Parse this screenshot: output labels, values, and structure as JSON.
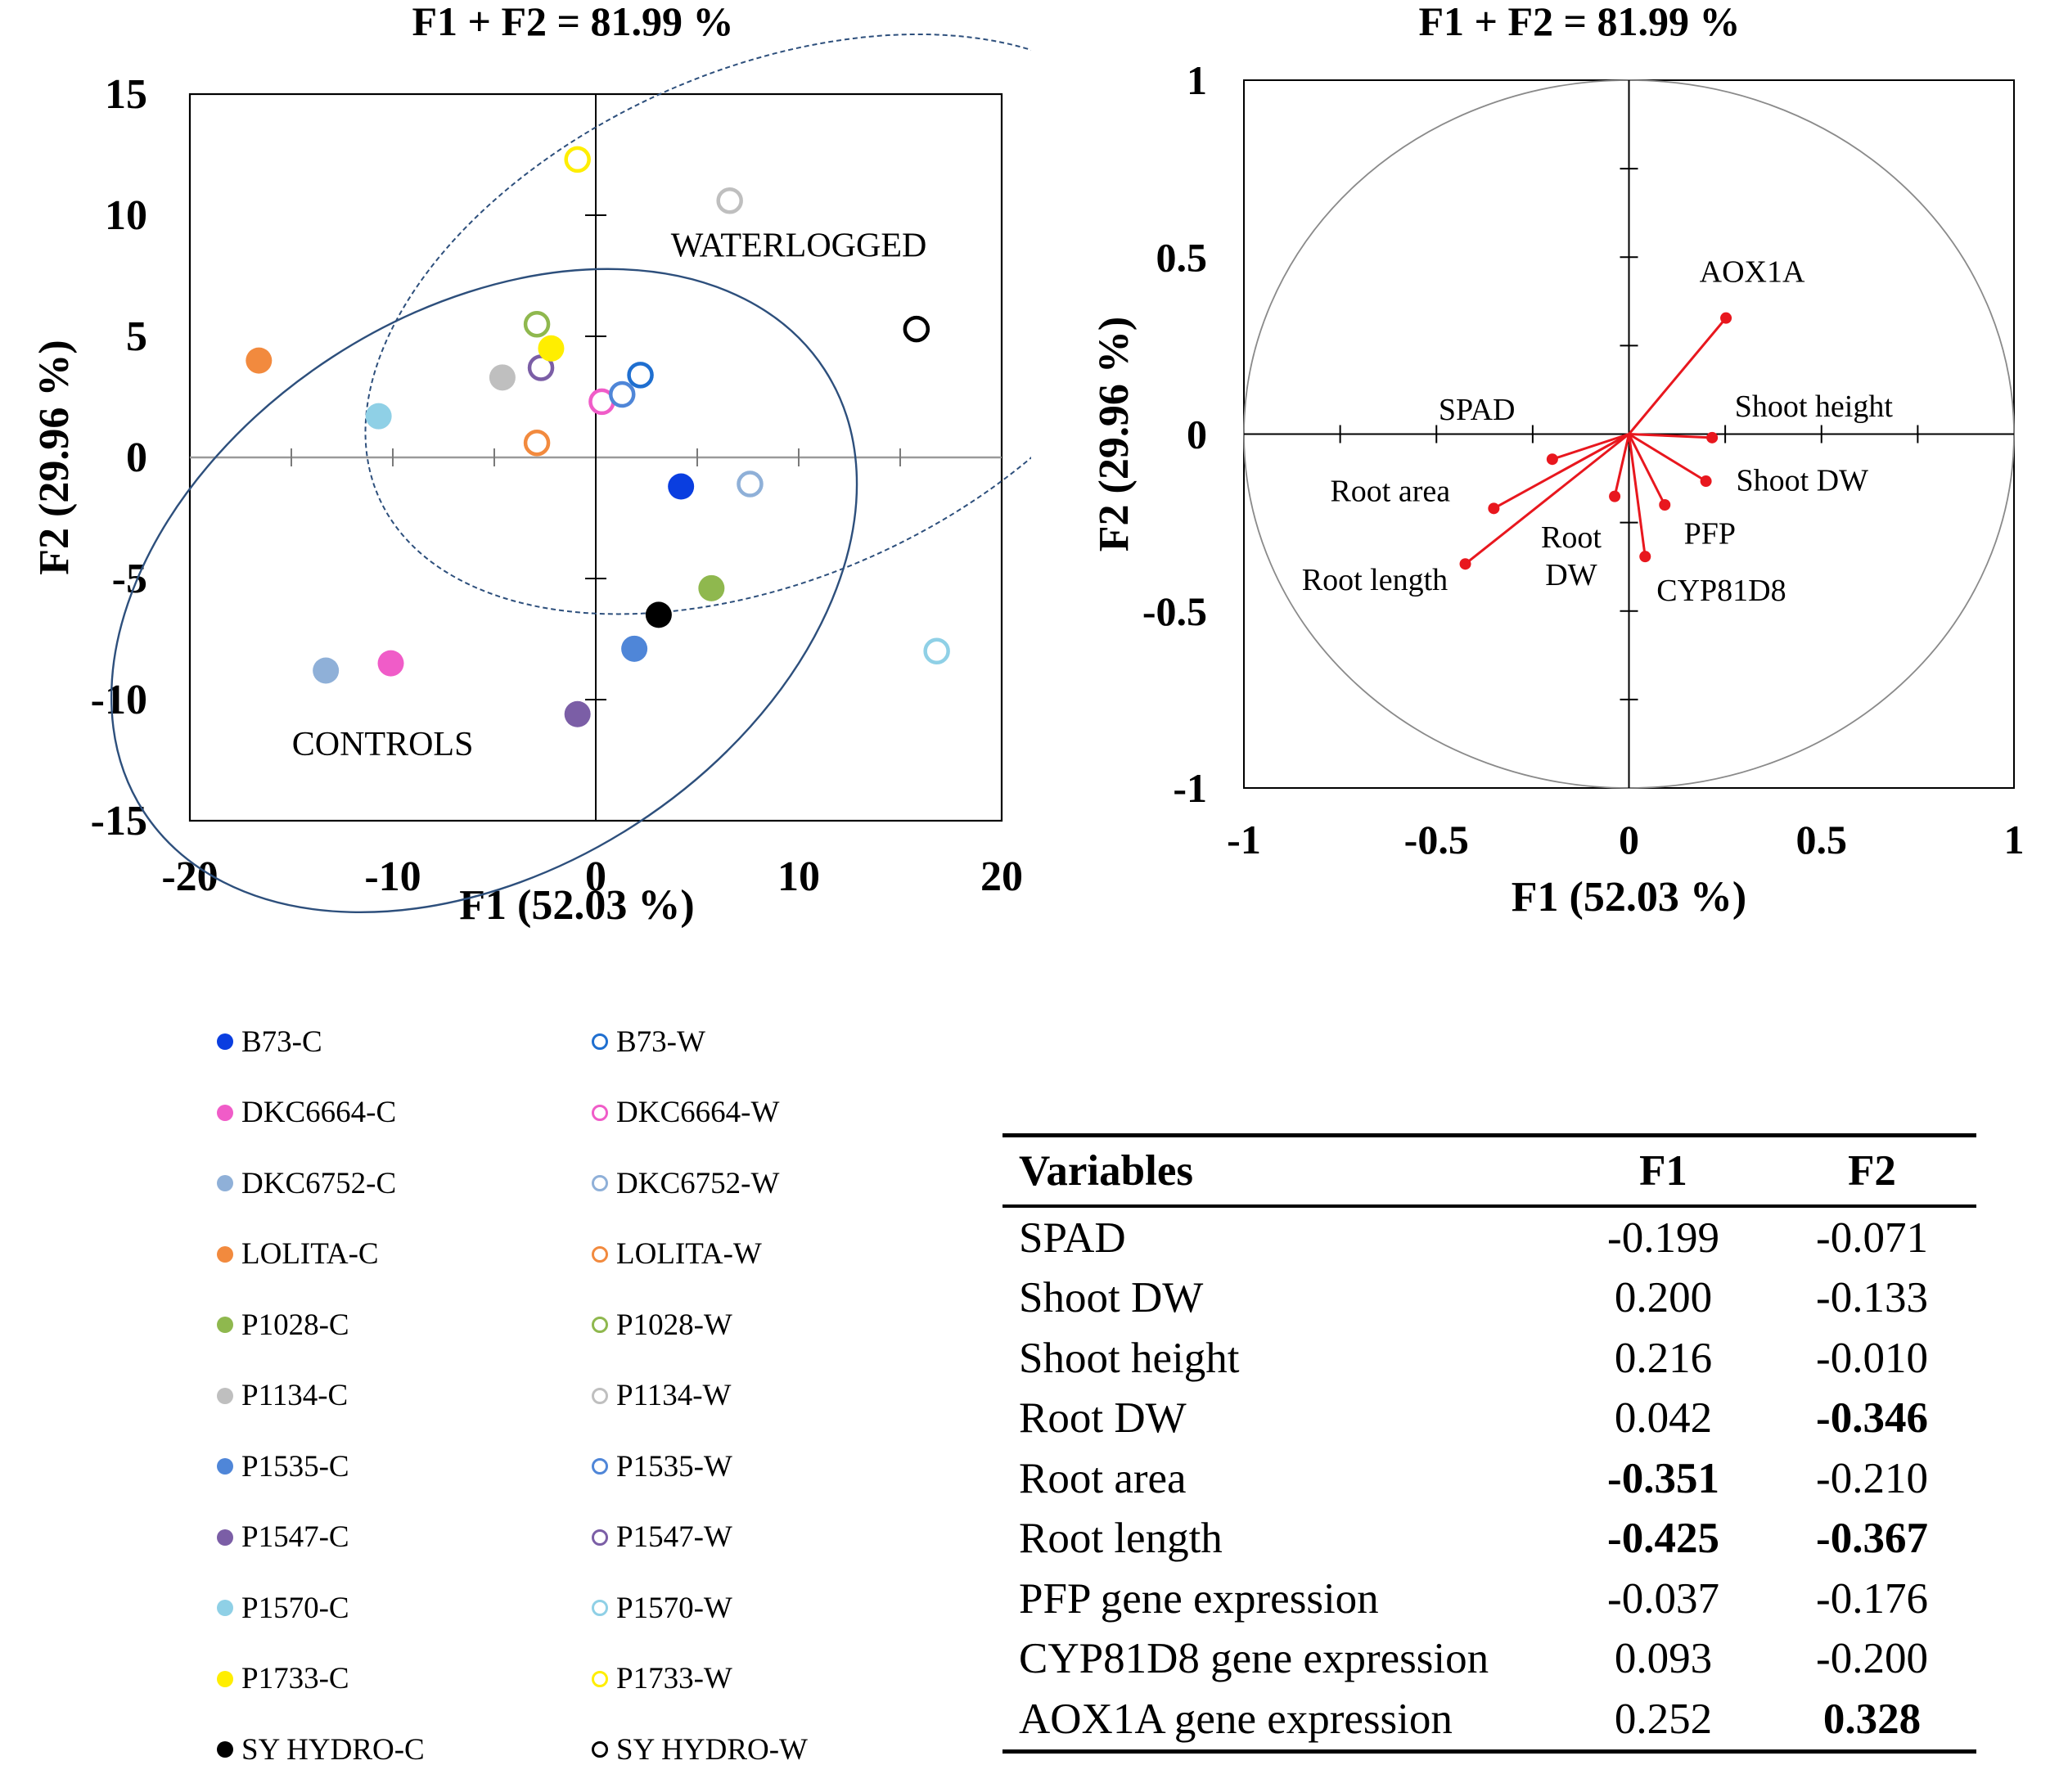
{
  "chart_data": [
    {
      "type": "scatter",
      "title": "F1 + F2 = 81.99 %",
      "xlabel": "F1 (52.03 %)",
      "ylabel": "F2 (29.96 %)",
      "xlim": [
        -20,
        20
      ],
      "ylim": [
        -15,
        15
      ],
      "xticks": [
        -20,
        -10,
        0,
        10,
        20
      ],
      "yticks": [
        -15,
        -10,
        -5,
        0,
        5,
        10,
        15
      ],
      "xtick_labels": [
        "-20",
        "-10",
        "0",
        "10",
        "20"
      ],
      "ytick_labels": [
        "-15",
        "-10",
        "-5",
        "0",
        "5",
        "10",
        "15"
      ],
      "annotations": [
        {
          "text": "WATERLOGGED",
          "x": 10,
          "y": 8.3
        },
        {
          "text": "CONTROLS",
          "x": -10.5,
          "y": -12.3
        }
      ],
      "groups": [
        {
          "label": "WATERLOGGED",
          "center": [
            8.5,
            5.5
          ],
          "radii": [
            21,
            10.5
          ],
          "angle_deg": -24,
          "style": "dashed"
        },
        {
          "label": "CONTROLS",
          "center": [
            -5.5,
            -5.5
          ],
          "radii": [
            20,
            11.5
          ],
          "angle_deg": -33,
          "style": "solid"
        }
      ],
      "series": [
        {
          "name": "B73-C",
          "color": "#0a3ee0",
          "filled": true,
          "x": 4.2,
          "y": -1.2
        },
        {
          "name": "B73-W",
          "color": "#1f6fd0",
          "filled": false,
          "x": 2.2,
          "y": 3.4
        },
        {
          "name": "DKC6664-C",
          "color": "#f05cc8",
          "filled": true,
          "x": -10.1,
          "y": -8.5
        },
        {
          "name": "DKC6664-W",
          "color": "#f05cc8",
          "filled": false,
          "x": 0.3,
          "y": 2.3
        },
        {
          "name": "DKC6752-C",
          "color": "#8fb0d8",
          "filled": true,
          "x": -13.3,
          "y": -8.8
        },
        {
          "name": "DKC6752-W",
          "color": "#8fb0d8",
          "filled": false,
          "x": 7.6,
          "y": -1.1
        },
        {
          "name": "LOLITA-C",
          "color": "#f28a3e",
          "filled": true,
          "x": -16.6,
          "y": 4.0
        },
        {
          "name": "LOLITA-W",
          "color": "#f28a3e",
          "filled": false,
          "x": -2.9,
          "y": 0.6
        },
        {
          "name": "P1028-C",
          "color": "#8fb84e",
          "filled": true,
          "x": 5.7,
          "y": -5.4
        },
        {
          "name": "P1028-W",
          "color": "#8fb84e",
          "filled": false,
          "x": -2.9,
          "y": 5.5
        },
        {
          "name": "P1134-C",
          "color": "#bfbfbf",
          "filled": true,
          "x": -4.6,
          "y": 3.3
        },
        {
          "name": "P1134-W",
          "color": "#bfbfbf",
          "filled": false,
          "x": 6.6,
          "y": 10.6
        },
        {
          "name": "P1535-C",
          "color": "#4f86d8",
          "filled": true,
          "x": 1.9,
          "y": -7.9
        },
        {
          "name": "P1535-W",
          "color": "#4f86d8",
          "filled": false,
          "x": 1.3,
          "y": 2.6
        },
        {
          "name": "P1547-C",
          "color": "#7b5ea6",
          "filled": true,
          "x": -0.9,
          "y": -10.6
        },
        {
          "name": "P1547-W",
          "color": "#7b5ea6",
          "filled": false,
          "x": -2.7,
          "y": 3.7
        },
        {
          "name": "P1570-C",
          "color": "#8fd0e6",
          "filled": true,
          "x": -10.7,
          "y": 1.7
        },
        {
          "name": "P1570-W",
          "color": "#8fd0e6",
          "filled": false,
          "x": 16.8,
          "y": -8.0
        },
        {
          "name": "P1733-C",
          "color": "#ffee00",
          "filled": true,
          "x": -2.2,
          "y": 4.5
        },
        {
          "name": "P1733-W",
          "color": "#ffee00",
          "filled": false,
          "x": -0.9,
          "y": 12.3
        },
        {
          "name": "SY HYDRO-C",
          "color": "#000000",
          "filled": true,
          "x": 3.1,
          "y": -6.5
        },
        {
          "name": "SY HYDRO-W",
          "color": "#000000",
          "filled": false,
          "x": 15.8,
          "y": 5.3
        }
      ]
    },
    {
      "type": "scatter",
      "subtype": "correlation-circle",
      "title": "F1 + F2 = 81.99 %",
      "xlabel": "F1 (52.03 %)",
      "ylabel": "F2 (29.96 %)",
      "xlim": [
        -1,
        1
      ],
      "ylim": [
        -1,
        1
      ],
      "xticks": [
        -1,
        -0.5,
        0,
        0.5,
        1
      ],
      "yticks": [
        -1,
        -0.5,
        0,
        0.5,
        1
      ],
      "xtick_labels": [
        "-1",
        "-0.5",
        "0",
        "0.5",
        "1"
      ],
      "ytick_labels": [
        "-1",
        "-0.5",
        "0",
        "0.5",
        "1"
      ],
      "vector_color": "#e8171e",
      "vectors": [
        {
          "name": "SPAD",
          "label_lines": [
            "SPAD"
          ],
          "x": -0.199,
          "y": -0.071,
          "label_x": -0.395,
          "label_y": 0.04
        },
        {
          "name": "Shoot DW",
          "label_lines": [
            "Shoot DW"
          ],
          "x": 0.2,
          "y": -0.133,
          "label_x": 0.45,
          "label_y": -0.16
        },
        {
          "name": "Shoot height",
          "label_lines": [
            "Shoot height"
          ],
          "x": 0.216,
          "y": -0.01,
          "label_x": 0.48,
          "label_y": 0.05
        },
        {
          "name": "Root DW",
          "label_lines": [
            "Root",
            "DW"
          ],
          "x": 0.042,
          "y": -0.346,
          "label_x": -0.15,
          "label_y": -0.32
        },
        {
          "name": "Root area",
          "label_lines": [
            "Root area"
          ],
          "x": -0.351,
          "y": -0.21,
          "label_x": -0.62,
          "label_y": -0.19
        },
        {
          "name": "Root length",
          "label_lines": [
            "Root length"
          ],
          "x": -0.425,
          "y": -0.367,
          "label_x": -0.66,
          "label_y": -0.44
        },
        {
          "name": "PFP",
          "label_lines": [
            "PFP"
          ],
          "x": -0.037,
          "y": -0.176,
          "label_x": 0.21,
          "label_y": -0.31
        },
        {
          "name": "CYP81D8",
          "label_lines": [
            "CYP81D8"
          ],
          "x": 0.093,
          "y": -0.2,
          "label_x": 0.24,
          "label_y": -0.47
        },
        {
          "name": "AOX1A",
          "label_lines": [
            "AOX1A"
          ],
          "x": 0.252,
          "y": 0.328,
          "label_x": 0.32,
          "label_y": 0.43
        }
      ]
    },
    {
      "type": "table",
      "columns": [
        "Variables",
        "F1",
        "F2"
      ],
      "rows": [
        {
          "variable": "SPAD",
          "f1": "-0.199",
          "f2": "-0.071",
          "f1_bold": false,
          "f2_bold": false
        },
        {
          "variable": "Shoot DW",
          "f1": "0.200",
          "f2": "-0.133",
          "f1_bold": false,
          "f2_bold": false
        },
        {
          "variable": "Shoot height",
          "f1": "0.216",
          "f2": "-0.010",
          "f1_bold": false,
          "f2_bold": false
        },
        {
          "variable": "Root DW",
          "f1": "0.042",
          "f2": "-0.346",
          "f1_bold": false,
          "f2_bold": true
        },
        {
          "variable": "Root area",
          "f1": "-0.351",
          "f2": "-0.210",
          "f1_bold": true,
          "f2_bold": false
        },
        {
          "variable": "Root length",
          "f1": "-0.425",
          "f2": "-0.367",
          "f1_bold": true,
          "f2_bold": true
        },
        {
          "variable": "PFP gene expression",
          "f1": "-0.037",
          "f2": "-0.176",
          "f1_bold": false,
          "f2_bold": false
        },
        {
          "variable": "CYP81D8 gene expression",
          "f1": "0.093",
          "f2": "-0.200",
          "f1_bold": false,
          "f2_bold": false
        },
        {
          "variable": "AOX1A gene expression",
          "f1": "0.252",
          "f2": "0.328",
          "f1_bold": false,
          "f2_bold": true
        }
      ]
    }
  ]
}
